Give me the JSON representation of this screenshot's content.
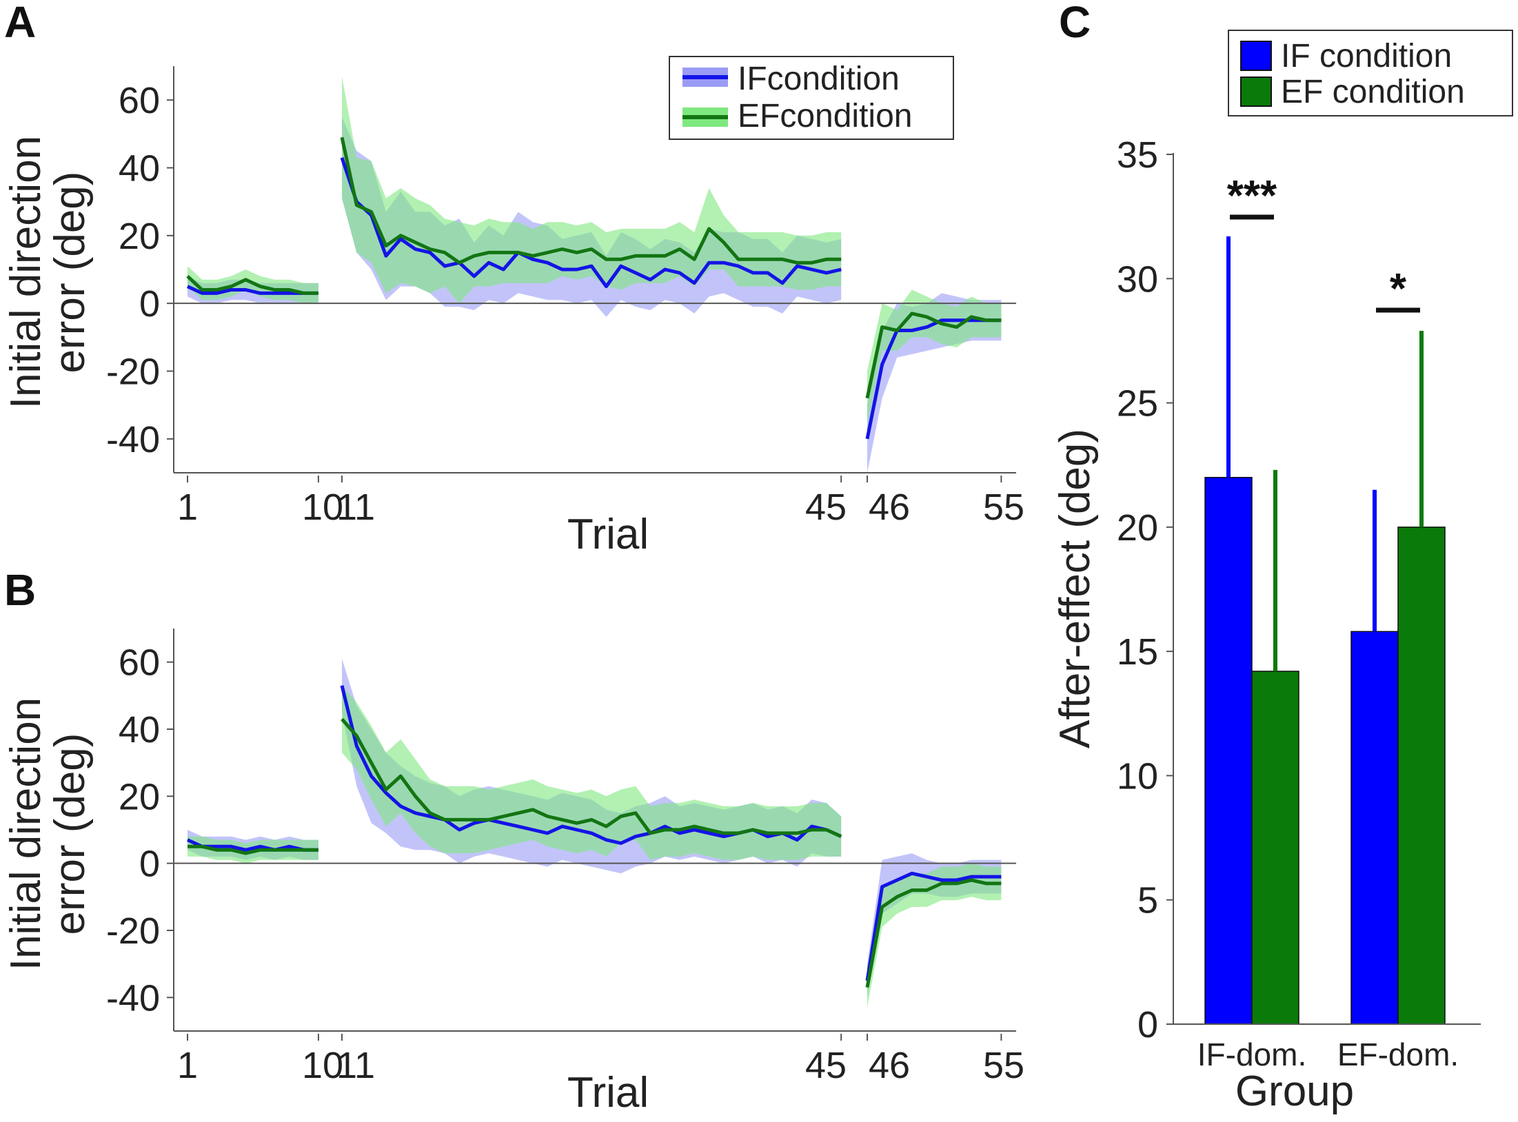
{
  "chart_data": [
    {
      "panel": "A",
      "type": "line",
      "xlabel": "Trial",
      "ylabel_line1": "Initial direction",
      "ylabel_line2": "error (deg)",
      "ylim": [
        -50,
        70
      ],
      "yticks": [
        60,
        40,
        20,
        0,
        -20,
        -40
      ],
      "ytick_labels": [
        "60",
        "40",
        "20",
        "0",
        "-20",
        "-40"
      ],
      "xtick_labels": [
        "1",
        "10",
        "11",
        "45",
        "46",
        "55"
      ],
      "legend": [
        "IFcondition",
        "EFcondition"
      ],
      "segments": [
        [
          1,
          10
        ],
        [
          11,
          45
        ],
        [
          46,
          55
        ]
      ],
      "series": [
        {
          "name": "IFcondition",
          "color": "#1414e6",
          "band_color": "#9a9cf5",
          "mean": [
            5,
            3,
            3,
            4,
            4,
            3,
            3,
            3,
            3,
            3,
            43,
            30,
            26,
            14,
            19,
            16,
            15,
            11,
            12,
            8,
            12,
            10,
            15,
            13,
            12,
            10,
            10,
            11,
            5,
            11,
            9,
            7,
            10,
            9,
            6,
            12,
            12,
            11,
            9,
            9,
            6,
            11,
            10,
            9,
            10,
            -40,
            -18,
            -8,
            -8,
            -7,
            -5,
            -5,
            -5,
            -5,
            -5
          ],
          "sd": [
            3,
            3,
            3,
            3,
            3,
            3,
            3,
            3,
            3,
            3,
            12,
            15,
            16,
            13,
            14,
            11,
            12,
            12,
            13,
            10,
            11,
            10,
            12,
            11,
            11,
            9,
            10,
            10,
            9,
            10,
            10,
            9,
            9,
            9,
            9,
            10,
            9,
            10,
            10,
            10,
            9,
            9,
            9,
            9,
            9,
            10,
            10,
            8,
            7,
            7,
            8,
            7,
            6,
            6,
            6
          ]
        },
        {
          "name": "EFcondition",
          "color": "#137513",
          "band_color": "#7fe87f",
          "mean": [
            8,
            4,
            4,
            5,
            7,
            5,
            4,
            4,
            3,
            3,
            49,
            29,
            27,
            17,
            20,
            18,
            16,
            15,
            12,
            14,
            15,
            15,
            15,
            14,
            15,
            16,
            15,
            16,
            13,
            13,
            14,
            14,
            14,
            16,
            13,
            22,
            18,
            13,
            13,
            13,
            13,
            12,
            12,
            13,
            13,
            -28,
            -7,
            -8,
            -3,
            -4,
            -6,
            -7,
            -4,
            -5,
            -5
          ],
          "sd": [
            3,
            3,
            3,
            3,
            3,
            3,
            3,
            3,
            3,
            3,
            18,
            14,
            15,
            14,
            14,
            13,
            13,
            10,
            12,
            9,
            10,
            9,
            9,
            8,
            9,
            8,
            8,
            8,
            8,
            9,
            8,
            8,
            8,
            8,
            8,
            12,
            8,
            8,
            8,
            8,
            8,
            8,
            8,
            8,
            8,
            8,
            7,
            6,
            7,
            6,
            6,
            6,
            6,
            5,
            5
          ]
        }
      ]
    },
    {
      "panel": "B",
      "type": "line",
      "xlabel": "Trial",
      "ylabel_line1": "Initial direction",
      "ylabel_line2": "error (deg)",
      "ylim": [
        -50,
        70
      ],
      "yticks": [
        60,
        40,
        20,
        0,
        -20,
        -40
      ],
      "ytick_labels": [
        "60",
        "40",
        "20",
        "0",
        "-20",
        "-40"
      ],
      "xtick_labels": [
        "1",
        "10",
        "11",
        "45",
        "46",
        "55"
      ],
      "segments": [
        [
          1,
          10
        ],
        [
          11,
          45
        ],
        [
          46,
          55
        ]
      ],
      "series": [
        {
          "name": "IFcondition",
          "color": "#1414e6",
          "band_color": "#9a9cf5",
          "mean": [
            7,
            5,
            5,
            5,
            4,
            5,
            4,
            5,
            4,
            4,
            53,
            35,
            26,
            21,
            17,
            15,
            14,
            13,
            10,
            12,
            13,
            12,
            11,
            10,
            9,
            11,
            10,
            9,
            7,
            6,
            8,
            9,
            11,
            9,
            10,
            9,
            8,
            9,
            10,
            8,
            9,
            7,
            11,
            10,
            8,
            -35,
            -7,
            -5,
            -3,
            -4,
            -5,
            -5,
            -4,
            -4,
            -4
          ],
          "sd": [
            3,
            3,
            3,
            3,
            3,
            3,
            3,
            3,
            3,
            3,
            8,
            12,
            14,
            12,
            12,
            11,
            10,
            10,
            10,
            10,
            10,
            10,
            10,
            10,
            10,
            10,
            10,
            10,
            9,
            9,
            9,
            9,
            9,
            8,
            8,
            8,
            8,
            8,
            8,
            8,
            8,
            8,
            8,
            8,
            6,
            5,
            8,
            7,
            6,
            5,
            5,
            5,
            5,
            5,
            5
          ]
        },
        {
          "name": "EFcondition",
          "color": "#137513",
          "band_color": "#7fe87f",
          "mean": [
            5,
            5,
            4,
            4,
            3,
            4,
            4,
            4,
            4,
            4,
            43,
            38,
            30,
            22,
            26,
            20,
            15,
            13,
            13,
            13,
            13,
            14,
            15,
            16,
            14,
            13,
            12,
            13,
            11,
            14,
            15,
            9,
            10,
            10,
            11,
            10,
            9,
            9,
            10,
            9,
            9,
            9,
            10,
            10,
            8,
            -37,
            -13,
            -10,
            -8,
            -8,
            -6,
            -6,
            -5,
            -6,
            -6
          ],
          "sd": [
            3,
            3,
            3,
            3,
            3,
            3,
            3,
            3,
            3,
            3,
            10,
            10,
            11,
            11,
            11,
            11,
            10,
            10,
            10,
            10,
            9,
            9,
            9,
            9,
            9,
            9,
            9,
            9,
            9,
            8,
            8,
            8,
            8,
            8,
            8,
            8,
            8,
            8,
            8,
            8,
            8,
            8,
            8,
            8,
            6,
            6,
            6,
            5,
            5,
            5,
            5,
            5,
            5,
            5,
            5
          ]
        }
      ]
    },
    {
      "panel": "C",
      "type": "bar",
      "xlabel": "Group",
      "ylabel": "After-effect (deg)",
      "ylim": [
        0,
        35
      ],
      "yticks": [
        0,
        5,
        10,
        15,
        20,
        25,
        30,
        35
      ],
      "ytick_labels": [
        "0",
        "5",
        "10",
        "15",
        "20",
        "25",
        "30",
        "35"
      ],
      "categories": [
        "IF-dom.",
        "EF-dom."
      ],
      "legend": [
        "IF condition",
        "EF condition"
      ],
      "series": [
        {
          "name": "IF condition",
          "color": "#0000ff",
          "values": [
            22.0,
            15.8
          ],
          "errors": [
            9.7,
            5.7
          ]
        },
        {
          "name": "EF condition",
          "color": "#0a7a0a",
          "values": [
            14.2,
            20.0
          ],
          "errors": [
            8.1,
            7.9
          ]
        }
      ],
      "significance": [
        "***",
        "*"
      ]
    }
  ],
  "panels": {
    "A": "A",
    "B": "B",
    "C": "C"
  }
}
